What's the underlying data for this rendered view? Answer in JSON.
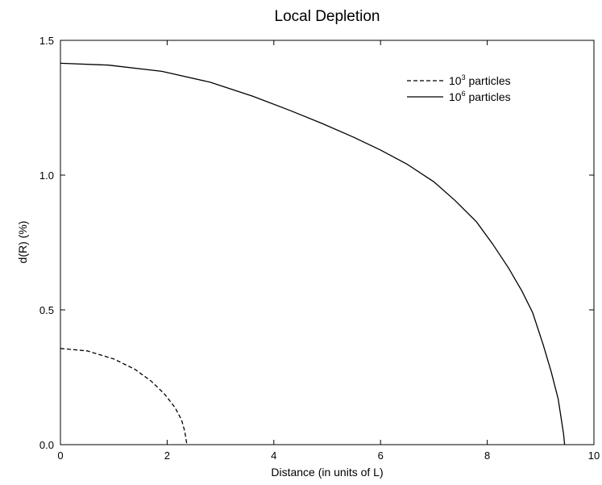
{
  "chart_data": {
    "type": "line",
    "title": "Local Depletion",
    "xlabel": "Distance (in units of L)",
    "ylabel": "d(R)  (%)",
    "xlim": [
      0,
      10
    ],
    "ylim": [
      0,
      1.5
    ],
    "x_ticks": [
      0,
      2,
      4,
      6,
      8,
      10
    ],
    "x_tick_labels": [
      "0",
      "2",
      "4",
      "6",
      "8",
      "10"
    ],
    "y_ticks": [
      0,
      0.5,
      1.0,
      1.5
    ],
    "y_tick_labels": [
      "0.0",
      "0.5",
      "1.0",
      "1.5"
    ],
    "grid": false,
    "legend_position": "top-right",
    "series": [
      {
        "name_base": "10",
        "name_sup": "3",
        "name_rest": " particles",
        "style": "dashed",
        "color": "#000000",
        "x": [
          0,
          0.5,
          1.0,
          1.4,
          1.7,
          1.95,
          2.15,
          2.27,
          2.33,
          2.37
        ],
        "y": [
          0.357,
          0.348,
          0.318,
          0.279,
          0.236,
          0.188,
          0.137,
          0.092,
          0.05,
          0.0
        ]
      },
      {
        "name_base": "10",
        "name_sup": "6",
        "name_rest": " particles",
        "style": "solid",
        "color": "#000000",
        "x": [
          0,
          0.9,
          1.9,
          2.8,
          3.6,
          4.3,
          4.9,
          5.5,
          6.0,
          6.5,
          7.0,
          7.4,
          7.8,
          8.1,
          8.4,
          8.65,
          8.85,
          9.05,
          9.2,
          9.33,
          9.43,
          9.45
        ],
        "y": [
          1.415,
          1.408,
          1.385,
          1.345,
          1.293,
          1.24,
          1.192,
          1.14,
          1.093,
          1.04,
          0.975,
          0.905,
          0.826,
          0.745,
          0.655,
          0.57,
          0.49,
          0.37,
          0.27,
          0.17,
          0.04,
          0.0
        ]
      }
    ]
  }
}
